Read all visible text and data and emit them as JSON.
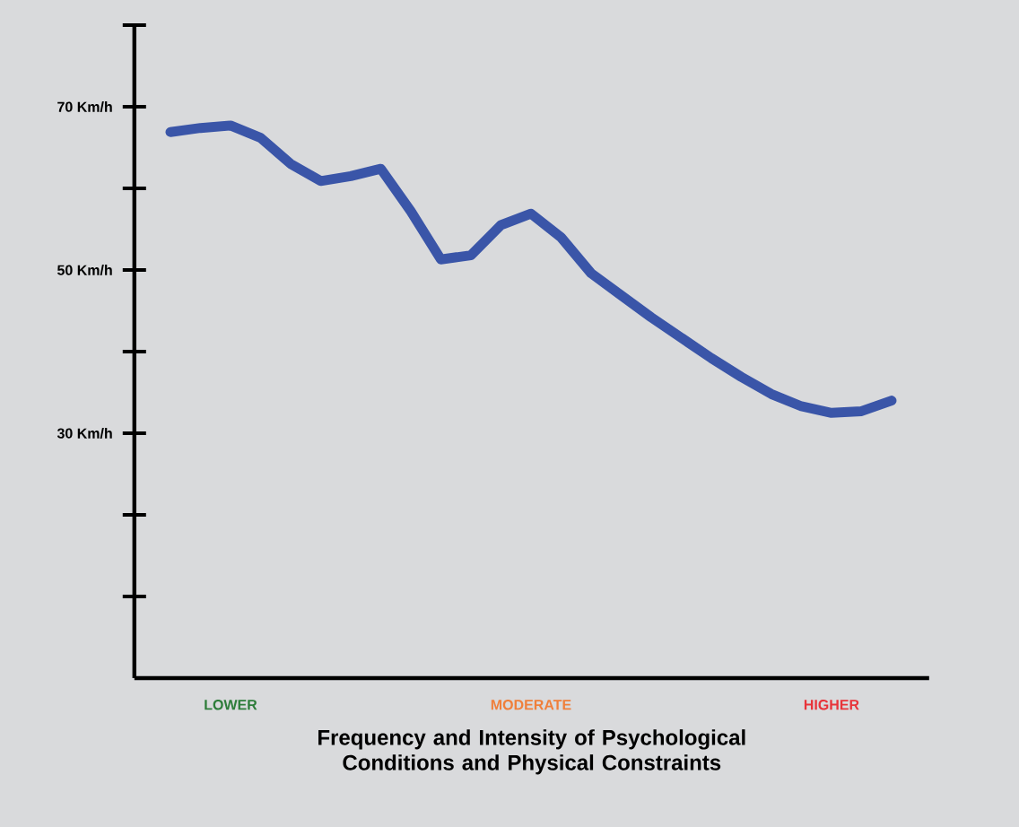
{
  "chart_data": {
    "type": "line",
    "xlabel": "Frequency and Intensity of Psychological Conditions and Physical Constraints",
    "categories": [
      null,
      null,
      "LOWER",
      null,
      null,
      null,
      null,
      null,
      null,
      null,
      null,
      null,
      "MODERATE",
      null,
      null,
      null,
      null,
      null,
      null,
      null,
      null,
      null,
      "HIGHER",
      null,
      null
    ],
    "series": [
      {
        "color": "#3a55a8",
        "values": [
          66.9,
          67.4,
          67.7,
          66.2,
          63.0,
          60.9,
          61.5,
          62.4,
          57.2,
          51.3,
          51.8,
          55.5,
          56.9,
          54.0,
          49.6,
          46.9,
          44.2,
          41.7,
          39.2,
          36.9,
          34.8,
          33.3,
          32.5,
          32.7,
          34.0
        ]
      }
    ],
    "ylim": [
      0,
      80
    ],
    "yticks": [
      {
        "value": 10,
        "label": null
      },
      {
        "value": 20,
        "label": null
      },
      {
        "value": 30,
        "label": "30 Km/h"
      },
      {
        "value": 40,
        "label": null
      },
      {
        "value": 50,
        "label": "50 Km/h"
      },
      {
        "value": 60,
        "label": null
      },
      {
        "value": 70,
        "label": "70 Km/h"
      },
      {
        "value": 80,
        "label": null
      }
    ],
    "grid": false,
    "marker": "none",
    "line_style": "solid"
  }
}
